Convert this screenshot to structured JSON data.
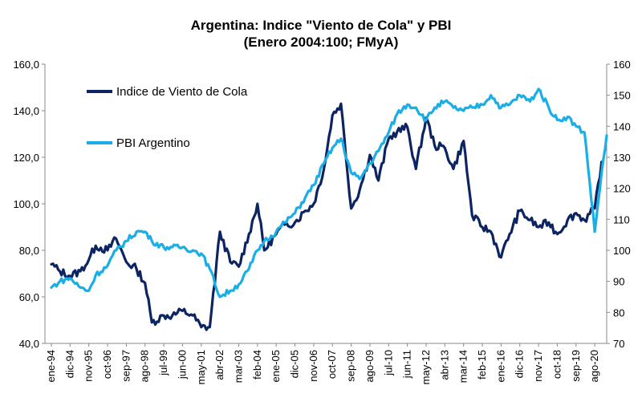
{
  "chart_data": {
    "type": "line",
    "title": "Argentina: Indice \"Viento de Cola\" y PBI",
    "subtitle": "(Enero 2004:100; FMyA)",
    "x_tick_labels": [
      "ene-94",
      "dic-94",
      "nov-95",
      "oct-96",
      "sep-97",
      "ago-98",
      "jul-99",
      "jun-00",
      "may-01",
      "abr-02",
      "mar-03",
      "feb-04",
      "ene-05",
      "dic-05",
      "nov-06",
      "oct-07",
      "sep-08",
      "ago-09",
      "jul-10",
      "jun-11",
      "may-12",
      "abr-13",
      "mar-14",
      "feb-15",
      "ene-16",
      "dic-16",
      "nov-17",
      "oct-18",
      "sep-19",
      "ago-20"
    ],
    "y_left": {
      "ylim": [
        40,
        160
      ],
      "ticks": [
        "40,0",
        "60,0",
        "80,0",
        "100,0",
        "120,0",
        "140,0",
        "160,0"
      ]
    },
    "y_right": {
      "ylim": [
        70,
        160
      ],
      "ticks": [
        "70",
        "80",
        "90",
        "100",
        "110",
        "120",
        "130",
        "140",
        "150",
        "160"
      ]
    },
    "legend_placement": "top-left",
    "grid": false,
    "series": [
      {
        "name": "Indice de Viento de Cola",
        "axis": "left",
        "color": "#0d2463",
        "points": [
          [
            "ene-94",
            74
          ],
          [
            "jun-94",
            71
          ],
          [
            "dic-94",
            69
          ],
          [
            "jun-95",
            71
          ],
          [
            "nov-95",
            76
          ],
          [
            "mar-96",
            82
          ],
          [
            "oct-96",
            80
          ],
          [
            "mar-97",
            85
          ],
          [
            "sep-97",
            75
          ],
          [
            "mar-98",
            72
          ],
          [
            "ago-98",
            66
          ],
          [
            "dic-98",
            49
          ],
          [
            "jul-99",
            52
          ],
          [
            "dic-99",
            52
          ],
          [
            "jun-00",
            54
          ],
          [
            "dec-00",
            52
          ],
          [
            "may-01",
            47
          ],
          [
            "oct-01",
            47
          ],
          [
            "abr-02",
            88
          ],
          [
            "oct-02",
            75
          ],
          [
            "mar-03",
            73
          ],
          [
            "sep-03",
            87
          ],
          [
            "feb-04",
            100
          ],
          [
            "jun-04",
            80
          ],
          [
            "ene-05",
            87
          ],
          [
            "jun-05",
            91
          ],
          [
            "dic-05",
            92
          ],
          [
            "jun-06",
            97
          ],
          [
            "nov-06",
            100
          ],
          [
            "may-07",
            115
          ],
          [
            "oct-07",
            138
          ],
          [
            "mar-08",
            143
          ],
          [
            "sep-08",
            98
          ],
          [
            "feb-09",
            106
          ],
          [
            "ago-09",
            121
          ],
          [
            "jan-10",
            110
          ],
          [
            "jul-10",
            128
          ],
          [
            "dic-10",
            131
          ],
          [
            "jun-11",
            133
          ],
          [
            "nov-11",
            115
          ],
          [
            "may-12",
            137
          ],
          [
            "oct-12",
            125
          ],
          [
            "abr-13",
            124
          ],
          [
            "sep-13",
            115
          ],
          [
            "mar-14",
            127
          ],
          [
            "ago-14",
            95
          ],
          [
            "feb-15",
            90
          ],
          [
            "jul-15",
            88
          ],
          [
            "ene-16",
            77
          ],
          [
            "jun-16",
            87
          ],
          [
            "dic-16",
            97
          ],
          [
            "jun-17",
            93
          ],
          [
            "nov-17",
            90
          ],
          [
            "may-18",
            92
          ],
          [
            "oct-18",
            87
          ],
          [
            "abr-19",
            93
          ],
          [
            "sep-19",
            96
          ],
          [
            "feb-20",
            93
          ],
          [
            "ago-20",
            98
          ],
          [
            "dic-20",
            118
          ]
        ]
      },
      {
        "name": "PBI Argentino",
        "axis": "right",
        "color": "#1aaee6",
        "points": [
          [
            "ene-94",
            88
          ],
          [
            "jun-94",
            90
          ],
          [
            "dic-94",
            91
          ],
          [
            "jun-95",
            88
          ],
          [
            "nov-95",
            87
          ],
          [
            "mar-96",
            92
          ],
          [
            "oct-96",
            95
          ],
          [
            "mar-97",
            100
          ],
          [
            "sep-97",
            103
          ],
          [
            "mar-98",
            106
          ],
          [
            "ago-98",
            106
          ],
          [
            "dic-98",
            103
          ],
          [
            "jul-99",
            101
          ],
          [
            "dic-99",
            101
          ],
          [
            "jun-00",
            101
          ],
          [
            "dec-00",
            100
          ],
          [
            "may-01",
            99
          ],
          [
            "oct-01",
            94
          ],
          [
            "abr-02",
            85
          ],
          [
            "oct-02",
            87
          ],
          [
            "mar-03",
            89
          ],
          [
            "sep-03",
            94
          ],
          [
            "feb-04",
            100
          ],
          [
            "jun-04",
            103
          ],
          [
            "ene-05",
            106
          ],
          [
            "jun-05",
            109
          ],
          [
            "dic-05",
            112
          ],
          [
            "jun-06",
            117
          ],
          [
            "nov-06",
            121
          ],
          [
            "may-07",
            128
          ],
          [
            "oct-07",
            133
          ],
          [
            "mar-08",
            136
          ],
          [
            "sep-08",
            125
          ],
          [
            "feb-09",
            123
          ],
          [
            "ago-09",
            128
          ],
          [
            "jan-10",
            132
          ],
          [
            "jul-10",
            138
          ],
          [
            "dic-10",
            144
          ],
          [
            "jun-11",
            147
          ],
          [
            "nov-11",
            146
          ],
          [
            "may-12",
            142
          ],
          [
            "oct-12",
            146
          ],
          [
            "abr-13",
            148
          ],
          [
            "sep-13",
            146
          ],
          [
            "mar-14",
            145
          ],
          [
            "ago-14",
            146
          ],
          [
            "feb-15",
            147
          ],
          [
            "jul-15",
            150
          ],
          [
            "ene-16",
            146
          ],
          [
            "jun-16",
            147
          ],
          [
            "dic-16",
            150
          ],
          [
            "jun-17",
            148
          ],
          [
            "nov-17",
            152
          ],
          [
            "may-18",
            146
          ],
          [
            "oct-18",
            142
          ],
          [
            "abr-19",
            143
          ],
          [
            "sep-19",
            140
          ],
          [
            "feb-20",
            138
          ],
          [
            "ago-20",
            106
          ],
          [
            "dic-20",
            125
          ],
          [
            "mar-21",
            137
          ]
        ]
      }
    ]
  }
}
